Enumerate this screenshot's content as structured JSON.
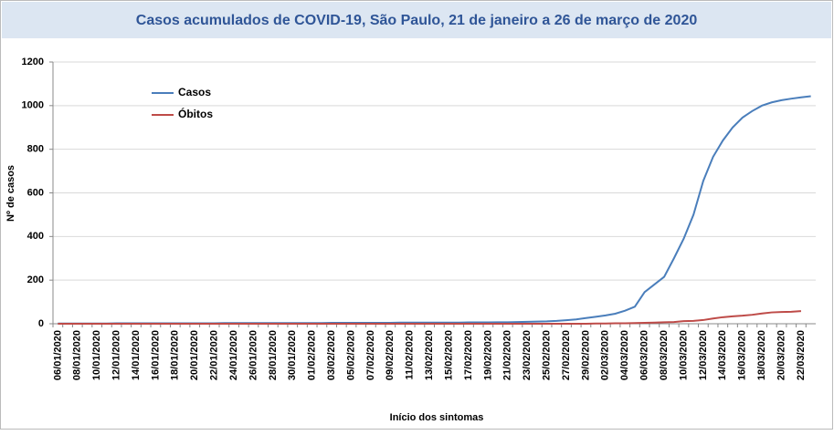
{
  "chart_data": {
    "type": "line",
    "title": "Casos acumulados de COVID-19, São Paulo, 21 de janeiro a 26 de março de 2020",
    "x_label": "Início dos sintomas",
    "y_label": "Nº de casos",
    "categories": [
      "06/01/2020",
      null,
      "08/01/2020",
      null,
      "10/01/2020",
      null,
      "12/01/2020",
      null,
      "14/01/2020",
      null,
      "16/01/2020",
      null,
      "18/01/2020",
      null,
      "20/01/2020",
      null,
      "22/01/2020",
      null,
      "24/01/2020",
      null,
      "26/01/2020",
      null,
      "28/01/2020",
      null,
      "30/01/2020",
      null,
      "01/02/2020",
      null,
      "03/02/2020",
      null,
      "05/02/2020",
      null,
      "07/02/2020",
      null,
      "09/02/2020",
      null,
      "11/02/2020",
      null,
      "13/02/2020",
      null,
      "15/02/2020",
      null,
      "17/02/2020",
      null,
      "19/02/2020",
      null,
      "21/02/2020",
      null,
      "23/02/2020",
      null,
      "25/02/2020",
      null,
      "27/02/2020",
      null,
      "29/02/2020",
      null,
      "02/03/2020",
      null,
      "04/03/2020",
      null,
      "06/03/2020",
      null,
      "08/03/2020",
      null,
      "10/03/2020",
      null,
      "12/03/2020",
      null,
      "14/03/2020",
      null,
      "16/03/2020",
      null,
      "18/03/2020",
      null,
      "20/03/2020",
      null,
      "22/03/2020",
      null
    ],
    "series": [
      {
        "name": "Casos",
        "color": "#4a7ebb",
        "values": [
          1,
          1,
          1,
          1,
          1,
          1,
          2,
          2,
          2,
          2,
          2,
          2,
          2,
          2,
          2,
          2,
          2,
          3,
          3,
          3,
          3,
          3,
          3,
          3,
          3,
          3,
          3,
          3,
          4,
          4,
          4,
          4,
          4,
          4,
          4,
          5,
          5,
          5,
          5,
          5,
          5,
          5,
          6,
          6,
          6,
          7,
          7,
          8,
          9,
          10,
          11,
          13,
          16,
          20,
          26,
          32,
          38,
          46,
          60,
          78,
          145,
          180,
          215,
          300,
          390,
          500,
          655,
          765,
          840,
          900,
          945,
          975,
          1000,
          1015,
          1025,
          1032,
          1038,
          1043
        ]
      },
      {
        "name": "Óbitos",
        "color": "#be4b48",
        "values": [
          0,
          0,
          0,
          0,
          0,
          0,
          0,
          0,
          0,
          0,
          0,
          0,
          0,
          0,
          0,
          0,
          0,
          0,
          0,
          0,
          0,
          0,
          0,
          0,
          0,
          0,
          0,
          0,
          0,
          0,
          0,
          0,
          0,
          0,
          0,
          0,
          0,
          0,
          0,
          0,
          0,
          0,
          0,
          0,
          0,
          0,
          0,
          0,
          0,
          0,
          0,
          0,
          0,
          0,
          0,
          1,
          1,
          2,
          2,
          3,
          4,
          5,
          7,
          8,
          12,
          13,
          17,
          24,
          30,
          34,
          37,
          41,
          47,
          52,
          54,
          55,
          58,
          null
        ]
      }
    ],
    "ylim": [
      0,
      1200
    ],
    "yticks": [
      0,
      200,
      400,
      600,
      800,
      1000,
      1200
    ],
    "grid": true
  }
}
